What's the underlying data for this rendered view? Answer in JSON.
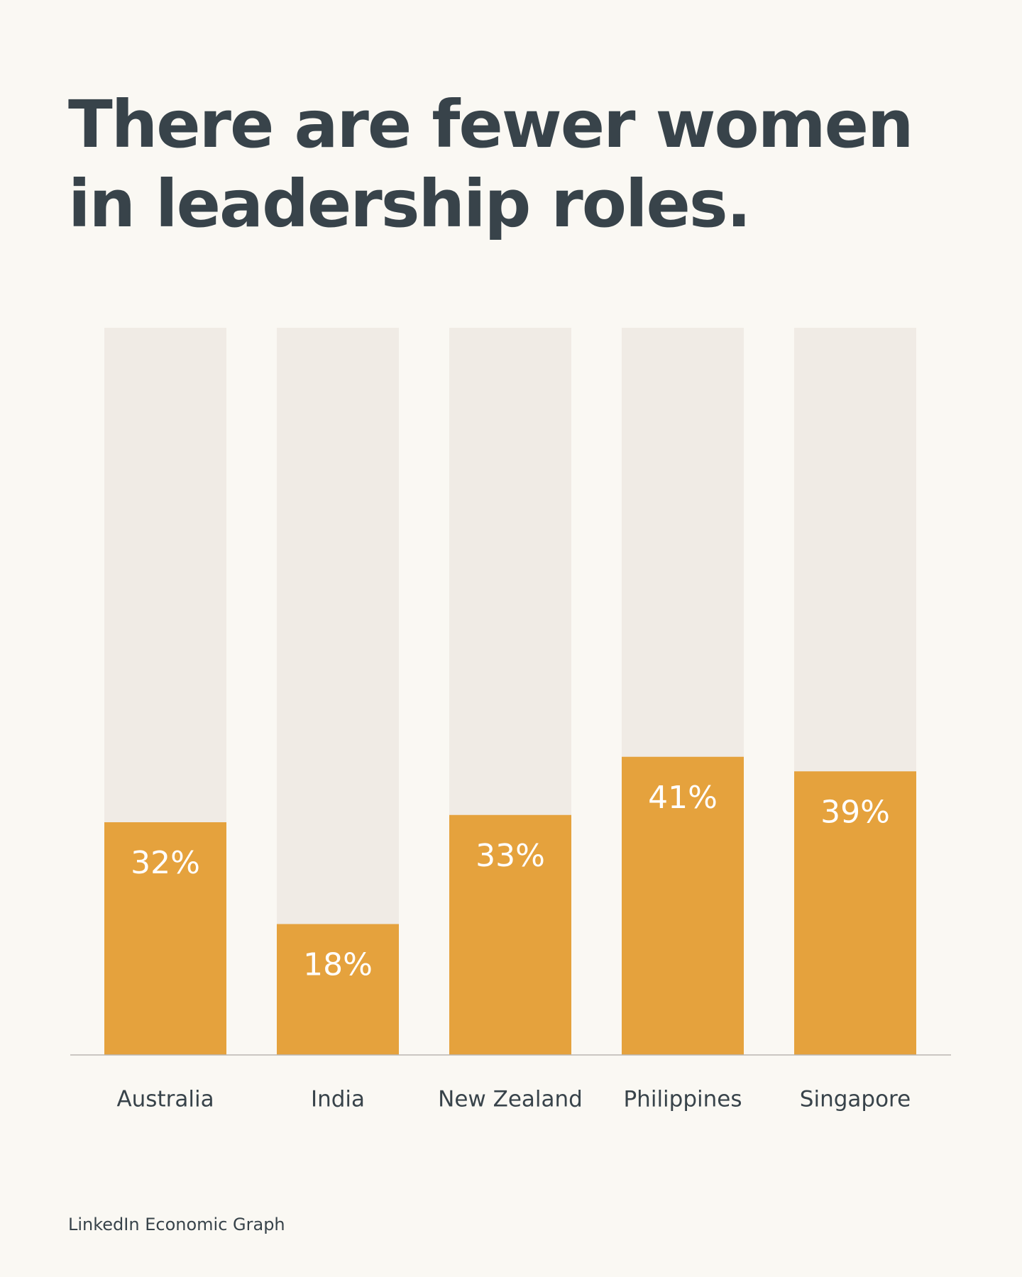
{
  "chart_data": {
    "type": "bar",
    "title": "There are fewer women in leadership roles.",
    "categories": [
      "Australia",
      "India",
      "New Zealand",
      "Philippines",
      "Singapore"
    ],
    "values": [
      32,
      18,
      33,
      41,
      39
    ],
    "value_labels": [
      "32%",
      "18%",
      "33%",
      "41%",
      "39%"
    ],
    "color": "#e5a23d",
    "track_color": "#f0ebe5",
    "ylim": [
      0,
      100
    ],
    "grid": false,
    "source": "LinkedIn Economic Graph"
  }
}
